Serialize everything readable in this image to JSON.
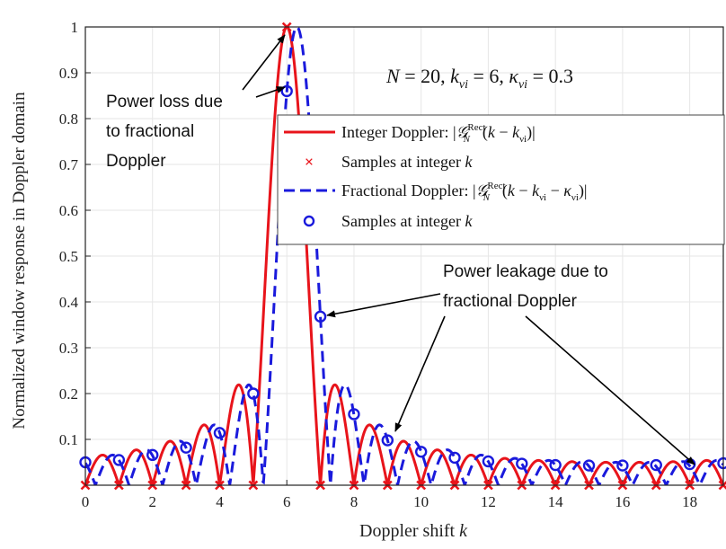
{
  "chart_data": {
    "type": "line",
    "xlabel": "Doppler shift k",
    "ylabel": "Normalized window response in Doppler domain",
    "xlim": [
      0,
      19
    ],
    "ylim": [
      0,
      1
    ],
    "xticks": [
      0,
      2,
      4,
      6,
      8,
      10,
      12,
      14,
      16,
      18
    ],
    "yticks": [
      0.1,
      0.2,
      0.3,
      0.4,
      0.5,
      0.6,
      0.7,
      0.8,
      0.9,
      1
    ],
    "xtick_labels": [
      "0",
      "2",
      "4",
      "6",
      "8",
      "10",
      "12",
      "14",
      "16",
      "18"
    ],
    "ytick_labels": [
      "0.1",
      "0.2",
      "0.3",
      "0.4",
      "0.5",
      "0.6",
      "0.7",
      "0.8",
      "0.9",
      "1"
    ],
    "grid": true,
    "params": {
      "N": 20,
      "k_nu": 6,
      "kappa_nu": 0.3
    },
    "param_text": "N = 20, kνi = 6, κνi = 0.3",
    "legend_position": "upper-right",
    "series": [
      {
        "name": "Integer Doppler: |G_N^Rect(k − kνi)|",
        "kind": "curve",
        "color": "#e8141b",
        "dash": "solid",
        "offset": 6.0
      },
      {
        "name": "Samples at integer k",
        "kind": "samples",
        "marker": "x",
        "color": "#e8141b",
        "x": [
          0,
          1,
          2,
          3,
          4,
          5,
          6,
          7,
          8,
          9,
          10,
          11,
          12,
          13,
          14,
          15,
          16,
          17,
          18,
          19
        ],
        "values": [
          0,
          0,
          0,
          0,
          0,
          0,
          1,
          0,
          0,
          0,
          0,
          0,
          0,
          0,
          0,
          0,
          0,
          0,
          0,
          0
        ]
      },
      {
        "name": "Fractional Doppler: |G_N^Rect(k − kνi − κνi)|",
        "kind": "curve",
        "color": "#1a1adc",
        "dash": "dashed",
        "offset": 6.3
      },
      {
        "name": "Samples at integer k",
        "kind": "samples",
        "marker": "o",
        "color": "#1a1adc",
        "x": [
          0,
          1,
          2,
          3,
          4,
          5,
          6,
          7,
          8,
          9,
          10,
          11,
          12,
          13,
          14,
          15,
          16,
          17,
          18,
          19
        ],
        "values": [
          0.05,
          0.055,
          0.066,
          0.082,
          0.114,
          0.2,
          0.86,
          0.368,
          0.155,
          0.098,
          0.073,
          0.06,
          0.052,
          0.047,
          0.044,
          0.043,
          0.043,
          0.044,
          0.046,
          0.048
        ]
      }
    ],
    "annotations": [
      {
        "text": "Power loss due to fractional Doppler",
        "lines": [
          "Power loss due",
          "to fractional",
          "Doppler"
        ]
      },
      {
        "text": "Power leakage due to fractional Doppler",
        "lines": [
          "Power leakage due to",
          "fractional Doppler"
        ]
      }
    ]
  }
}
